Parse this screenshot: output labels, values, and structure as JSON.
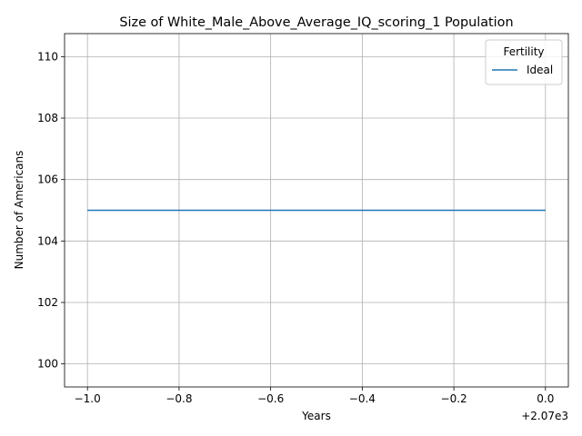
{
  "chart_data": {
    "type": "line",
    "title": "Size of White_Male_Above_Average_IQ_scoring_1 Population",
    "xlabel": "Years",
    "ylabel": "Number of Americans",
    "x_offset_text": "+2.07e3",
    "xlim": [
      -1.05,
      0.05
    ],
    "ylim": [
      99.25,
      110.75
    ],
    "x_ticks": [
      -1.0,
      -0.8,
      -0.6,
      -0.4,
      -0.2,
      0.0
    ],
    "x_tick_labels": [
      "−1.0",
      "−0.8",
      "−0.6",
      "−0.4",
      "−0.2",
      "0.0"
    ],
    "y_ticks": [
      100,
      102,
      104,
      106,
      108,
      110
    ],
    "y_tick_labels": [
      "100",
      "102",
      "104",
      "106",
      "108",
      "110"
    ],
    "grid": true,
    "legend": {
      "title": "Fertility",
      "placement": "top-right"
    },
    "series": [
      {
        "name": "Ideal",
        "color": "#1f77b4",
        "x": [
          -1.0,
          0.0
        ],
        "y": [
          105,
          105
        ]
      }
    ]
  }
}
